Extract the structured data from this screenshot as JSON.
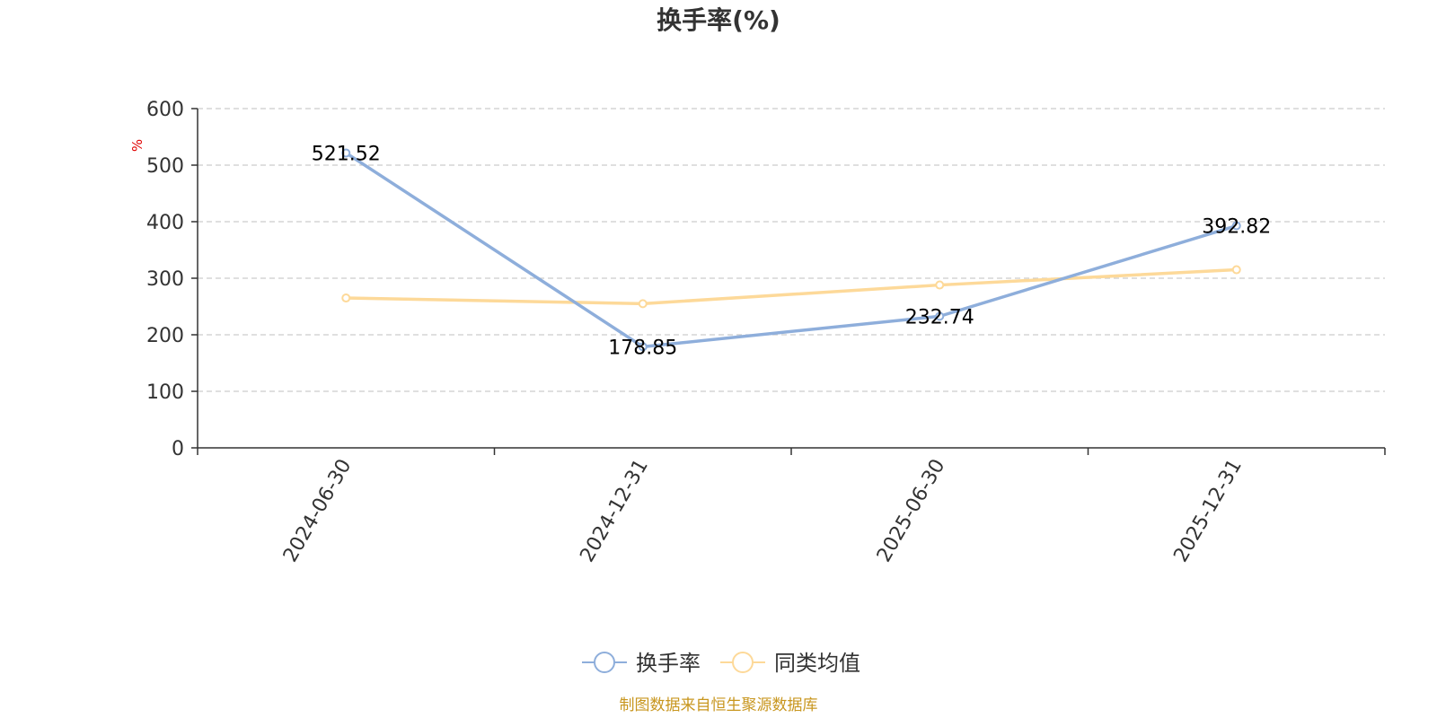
{
  "chart_data": {
    "type": "line",
    "title": "换手率(%)",
    "ylabel": "%",
    "xlabel": "",
    "categories": [
      "2024-06-30",
      "2024-12-31",
      "2025-06-30",
      "2025-12-31"
    ],
    "ylim": [
      0,
      600
    ],
    "yticks": [
      0,
      100,
      200,
      300,
      400,
      500,
      600
    ],
    "grid": true,
    "legend_position": "bottom-center",
    "series": [
      {
        "name": "换手率",
        "color": "#8eaedb",
        "values": [
          521.52,
          178.85,
          232.74,
          392.82
        ],
        "labels": [
          "521.52",
          "178.85",
          "232.74",
          "392.82"
        ]
      },
      {
        "name": "同类均值",
        "color": "#fdd999",
        "values": [
          265,
          255,
          288,
          315
        ]
      }
    ]
  },
  "source_text": "制图数据来自恒生聚源数据库"
}
